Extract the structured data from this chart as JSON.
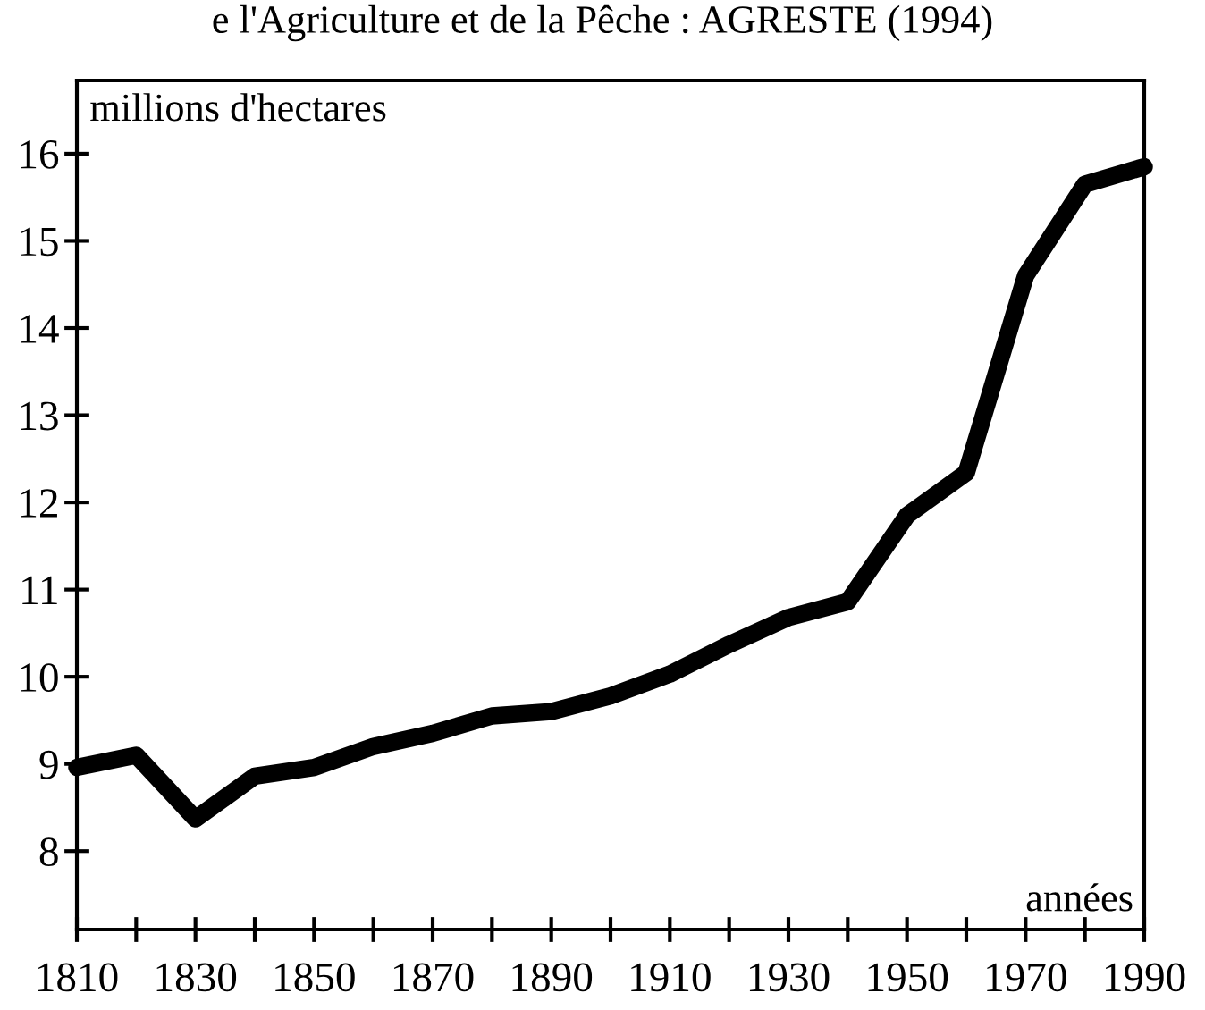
{
  "chart_data": {
    "type": "line",
    "title": "e l'Agriculture et de la Pêche : AGRESTE (1994)",
    "xlabel": "années",
    "ylabel": "millions d'hectares",
    "x": [
      1810,
      1820,
      1830,
      1840,
      1850,
      1860,
      1870,
      1880,
      1890,
      1900,
      1910,
      1920,
      1930,
      1940,
      1950,
      1960,
      1970,
      1980,
      1990
    ],
    "series": [
      {
        "color": "#000000",
        "values": [
          8.96,
          9.1,
          8.37,
          8.86,
          8.96,
          9.2,
          9.35,
          9.55,
          9.6,
          9.78,
          10.03,
          10.37,
          10.68,
          10.86,
          11.85,
          12.34,
          14.6,
          15.65,
          15.85
        ]
      }
    ],
    "xlim": [
      1810,
      1990
    ],
    "ylim": [
      7.1,
      16.84
    ],
    "xticks": [
      1810,
      {
        "value": 1820,
        "label": null
      },
      1830,
      {
        "value": 1840,
        "label": null
      },
      1850,
      {
        "value": 1860,
        "label": null
      },
      1870,
      {
        "value": 1880,
        "label": null
      },
      1890,
      {
        "value": 1900,
        "label": null
      },
      1910,
      {
        "value": 1920,
        "label": null
      },
      1930,
      {
        "value": 1940,
        "label": null
      },
      1950,
      {
        "value": 1960,
        "label": null
      },
      1970,
      {
        "value": 1980,
        "label": null
      },
      1990
    ],
    "yticks": [
      8,
      9,
      10,
      11,
      12,
      13,
      14,
      15,
      16
    ],
    "grid": false,
    "legend": false,
    "marker": "none",
    "line_style": "solid"
  }
}
